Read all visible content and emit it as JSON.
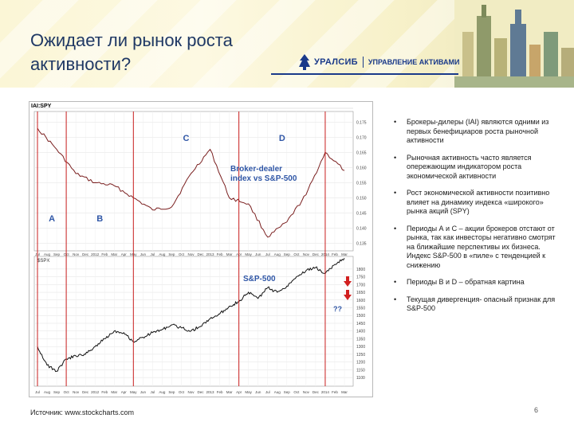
{
  "slide": {
    "title": "Ожидает ли рынок роста активности?",
    "logo": {
      "name": "УРАЛСИБ",
      "subtitle": "УПРАВЛЕНИЕ АКТИВАМИ"
    },
    "source": "Источник: www.stockcharts.com",
    "page_number": "6",
    "bullet_glyph": "•",
    "bullets": [
      "Брокеры-дилеры (IAI) являются одними из первых бенефициаров роста рыночной активности",
      "Рыночная активность часто является опережающим индикатором роста экономической активности",
      "Рост экономической активности позитивно влияет на динамику индекса «широкого» рынка акций (SPY)",
      "Периоды А и С – акции брокеров отстают от рынка, так как инвесторы негативно смотрят на ближайшие перспективы их бизнеса. Индекс S&P-500 в «пиле» с тенденцией к снижению",
      "Периоды В и D – обратная картина",
      "Текущая дивергенция- опасный признак для S&P-500"
    ]
  },
  "chart_data": [
    {
      "type": "line",
      "title": "Broker-dealer index vs S&P-500",
      "annotation_labels": [
        "Broker-dealer",
        "index vs S&P-500"
      ],
      "header_ticker": "IAI:SPY",
      "x_ticks": [
        "Jul",
        "Aug",
        "Sep",
        "Oct",
        "Nov",
        "Dec",
        "2012",
        "Feb",
        "Mar",
        "Apr",
        "May",
        "Jun",
        "Jul",
        "Aug",
        "Sep",
        "Oct",
        "Nov",
        "Dec",
        "2013",
        "Feb",
        "Mar",
        "Apr",
        "May",
        "Jun",
        "Jul",
        "Aug",
        "Sep",
        "Oct",
        "Nov",
        "Dec",
        "2014",
        "Feb",
        "Mar"
      ],
      "y_ticks": [
        "0.175",
        "0.170",
        "0.165",
        "0.160",
        "0.155",
        "0.150",
        "0.145",
        "0.140",
        "0.135"
      ],
      "ylim": [
        0.133,
        0.178
      ],
      "x": [
        0,
        2,
        4,
        6,
        8,
        10,
        12,
        14,
        16,
        18,
        20,
        22,
        24,
        26,
        28,
        30,
        32
      ],
      "values": [
        0.173,
        0.166,
        0.158,
        0.155,
        0.154,
        0.15,
        0.146,
        0.147,
        0.158,
        0.166,
        0.15,
        0.148,
        0.137,
        0.142,
        0.151,
        0.165,
        0.159
      ],
      "periods": [
        {
          "label": "A",
          "x_start": 0,
          "x_end": 3
        },
        {
          "label": "B",
          "x_start": 3,
          "x_end": 10
        },
        {
          "label": "C",
          "x_start": 10,
          "x_end": 21
        },
        {
          "label": "D",
          "x_start": 21,
          "x_end": 30
        }
      ]
    },
    {
      "type": "line",
      "title": "S&P-500",
      "header_ticker": "$SPX",
      "x_ticks": [
        "Jul",
        "Aug",
        "Sep",
        "Oct",
        "Nov",
        "Dec",
        "2012",
        "Feb",
        "Mar",
        "Apr",
        "May",
        "Jun",
        "Jul",
        "Aug",
        "Sep",
        "Oct",
        "Nov",
        "Dec",
        "2013",
        "Feb",
        "Mar",
        "Apr",
        "May",
        "Jun",
        "Jul",
        "Aug",
        "Sep",
        "Oct",
        "Nov",
        "Dec",
        "2014",
        "Feb",
        "Mar"
      ],
      "y_ticks": [
        "1800",
        "1750",
        "1700",
        "1650",
        "1600",
        "1550",
        "1500",
        "1450",
        "1400",
        "1350",
        "1300",
        "1250",
        "1200",
        "1150",
        "1100"
      ],
      "ylim": [
        1080,
        1830
      ],
      "x": [
        0,
        1,
        2,
        3,
        4,
        5,
        6,
        7,
        8,
        9,
        10,
        11,
        12,
        13,
        14,
        15,
        16,
        17,
        18,
        19,
        20,
        21,
        22,
        23,
        24,
        25,
        26,
        27,
        28,
        29,
        30,
        31,
        32
      ],
      "values": [
        1300,
        1180,
        1140,
        1220,
        1240,
        1250,
        1300,
        1350,
        1400,
        1390,
        1330,
        1360,
        1390,
        1410,
        1440,
        1420,
        1400,
        1430,
        1480,
        1510,
        1560,
        1590,
        1650,
        1610,
        1680,
        1650,
        1690,
        1750,
        1790,
        1810,
        1770,
        1830,
        1870
      ],
      "annotations": [
        "??"
      ]
    }
  ]
}
